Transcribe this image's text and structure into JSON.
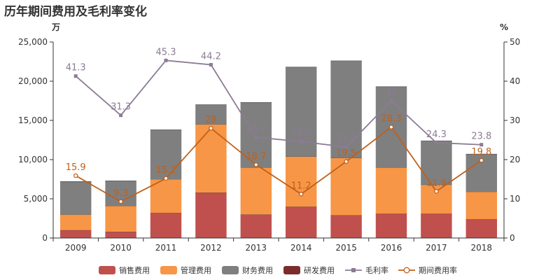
{
  "chart_data": {
    "type": "bar",
    "title": "历年期间费用及毛利率变化",
    "y_left_unit": "万",
    "y_right_unit": "%",
    "categories": [
      "2009",
      "2010",
      "2011",
      "2012",
      "2013",
      "2014",
      "2015",
      "2016",
      "2017",
      "2018"
    ],
    "ylim_left": [
      0,
      25000
    ],
    "yticks_left": [
      0,
      5000,
      10000,
      15000,
      20000,
      25000
    ],
    "yticks_left_labels": [
      "0",
      "5,000",
      "10,000",
      "15,000",
      "20,000",
      "25,000"
    ],
    "ylim_right": [
      0,
      50
    ],
    "yticks_right": [
      0,
      10,
      20,
      30,
      40,
      50
    ],
    "yticks_right_labels": [
      "0",
      "10",
      "20",
      "30",
      "40",
      "50"
    ],
    "stacked": true,
    "grid": false,
    "legend_position": "bottom",
    "series": [
      {
        "name": "销售费用",
        "kind": "bar",
        "axis": "left",
        "color": "#c0504d",
        "values": [
          1000,
          800,
          3200,
          5800,
          3000,
          4000,
          2900,
          3100,
          3100,
          2400
        ]
      },
      {
        "name": "管理费用",
        "kind": "bar",
        "axis": "left",
        "color": "#f79646",
        "values": [
          2000,
          3300,
          4300,
          8700,
          6000,
          6400,
          7300,
          5900,
          3700,
          3500
        ]
      },
      {
        "name": "财务费用",
        "kind": "bar",
        "axis": "left",
        "color": "#7f7f7f",
        "values": [
          4200,
          3200,
          6300,
          2500,
          8300,
          11400,
          12400,
          10300,
          5600,
          4800
        ]
      },
      {
        "name": "研发费用",
        "kind": "bar",
        "axis": "left",
        "color": "#7b2c2c",
        "values": [
          0,
          0,
          0,
          0,
          0,
          0,
          0,
          0,
          0,
          0
        ]
      },
      {
        "name": "毛利率",
        "kind": "line",
        "axis": "right",
        "color": "#8c7b94",
        "marker": "square",
        "values": [
          41.3,
          31.3,
          45.3,
          44.2,
          25.7,
          24.6,
          23.2,
          35,
          24.3,
          23.8
        ],
        "labels": [
          "41.3",
          "31.3",
          "45.3",
          "44.2",
          "25.7",
          "24.6",
          "23.2",
          "35",
          "24.3",
          "23.8"
        ]
      },
      {
        "name": "期间费用率",
        "kind": "line",
        "axis": "right",
        "color": "#c0601a",
        "marker": "circle",
        "values": [
          15.9,
          9.3,
          15.2,
          28,
          18.7,
          11.2,
          19.5,
          28.3,
          11.9,
          19.8
        ],
        "labels": [
          "15.9",
          "9.3",
          "15.2",
          "28",
          "18.7",
          "11.2",
          "19.5",
          "28.3",
          "11.9",
          "19.8"
        ]
      }
    ]
  }
}
